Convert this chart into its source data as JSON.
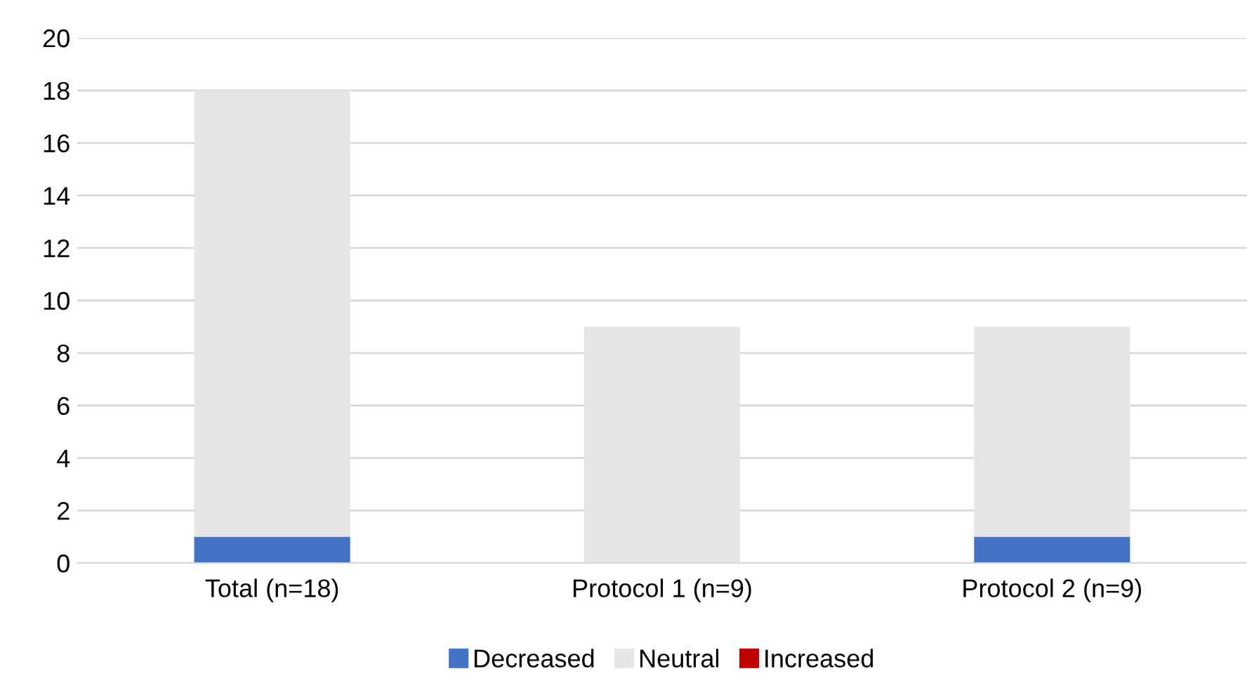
{
  "chart_data": {
    "type": "bar",
    "stacked": true,
    "categories": [
      "Total (n=18)",
      "Protocol 1 (n=9)",
      "Protocol 2 (n=9)"
    ],
    "series": [
      {
        "name": "Decreased",
        "color": "#4472c4",
        "values": [
          1,
          0,
          1
        ]
      },
      {
        "name": "Neutral",
        "color": "#e7e6e6",
        "values": [
          17,
          9,
          8
        ]
      },
      {
        "name": "Increased",
        "color": "#c00000",
        "values": [
          0,
          0,
          0
        ]
      }
    ],
    "ylim": [
      0,
      20
    ],
    "yticks": [
      0,
      2,
      4,
      6,
      8,
      10,
      12,
      14,
      16,
      18,
      20
    ],
    "grid": "y",
    "legend": "bottom"
  }
}
